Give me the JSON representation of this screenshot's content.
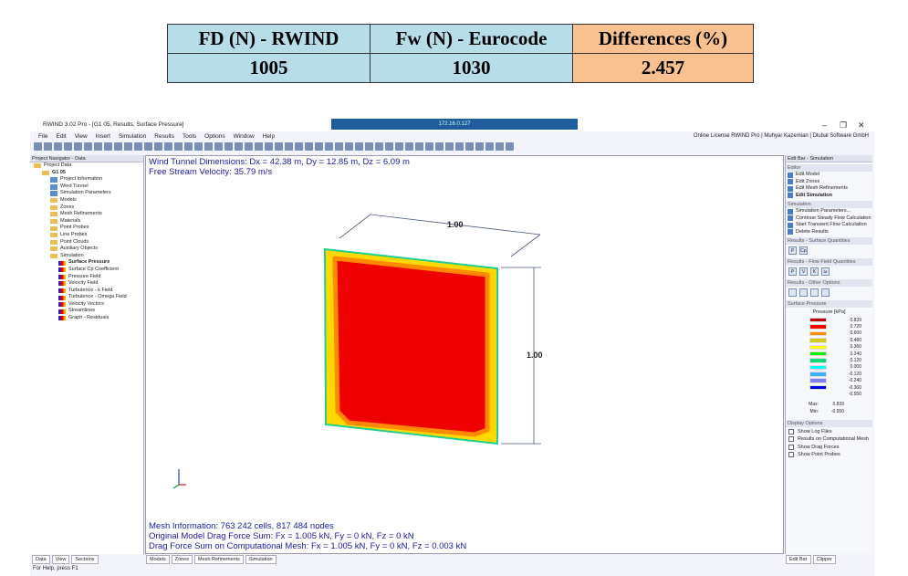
{
  "comparison": {
    "headers": [
      "FD (N) - RWIND",
      "Fw (N) - Eurocode",
      "Differences (%)"
    ],
    "values": [
      "1005",
      "1030",
      "2.457"
    ]
  },
  "window": {
    "title": "RWIND 3.02 Pro - [G1 05, Results, Surface Pressure]",
    "remote": "172.16.0.127",
    "license": "Online License RWIND Pro | Muhyar Kazemian | Dlubal Software GmbH"
  },
  "menu": [
    "File",
    "Edit",
    "View",
    "Insert",
    "Simulation",
    "Results",
    "Tools",
    "Options",
    "Window",
    "Help"
  ],
  "navigator": {
    "title": "Project Navigator - Data",
    "items": [
      {
        "label": "Project Data",
        "icon": "folder",
        "level": 0
      },
      {
        "label": "G1 05",
        "icon": "folder",
        "level": 1,
        "bold": true
      },
      {
        "label": "Project Information",
        "icon": "doc",
        "level": 2
      },
      {
        "label": "Wind Tunnel",
        "icon": "doc",
        "level": 2
      },
      {
        "label": "Simulation Parameters",
        "icon": "doc",
        "level": 2
      },
      {
        "label": "Models",
        "icon": "folder",
        "level": 2
      },
      {
        "label": "Zones",
        "icon": "folder",
        "level": 2
      },
      {
        "label": "Mesh Refinements",
        "icon": "folder",
        "level": 2
      },
      {
        "label": "Materials",
        "icon": "folder",
        "level": 2
      },
      {
        "label": "Point Probes",
        "icon": "folder",
        "level": 2
      },
      {
        "label": "Line Probes",
        "icon": "folder",
        "level": 2
      },
      {
        "label": "Point Clouds",
        "icon": "folder",
        "level": 2
      },
      {
        "label": "Auxiliary Objects",
        "icon": "folder",
        "level": 2
      },
      {
        "label": "Simulation",
        "icon": "folder",
        "level": 2
      },
      {
        "label": "Surface Pressure",
        "icon": "result",
        "level": 3,
        "bold": true
      },
      {
        "label": "Surface Cp Coefficient",
        "icon": "result",
        "level": 3
      },
      {
        "label": "Pressure Field",
        "icon": "result",
        "level": 3
      },
      {
        "label": "Velocity Field",
        "icon": "result",
        "level": 3
      },
      {
        "label": "Turbulence - k Field",
        "icon": "result",
        "level": 3
      },
      {
        "label": "Turbulence - Omega Field",
        "icon": "result",
        "level": 3
      },
      {
        "label": "Velocity Vectors",
        "icon": "result",
        "level": 3
      },
      {
        "label": "Streamlines",
        "icon": "result",
        "level": 3
      },
      {
        "label": "Graph - Residuals",
        "icon": "result",
        "level": 3
      }
    ]
  },
  "viewport": {
    "line1": "Wind Tunnel Dimensions: Dx = 42.38 m, Dy = 12.85 m, Dz = 6.09 m",
    "line2": "Free Stream Velocity: 35.79 m/s",
    "dim_width": "1.00",
    "dim_height": "1.00",
    "mesh_info": "Mesh Information: 763 242 cells, 817 484 nodes",
    "drag1": "Original Model Drag Force Sum: Fx = 1.005 kN, Fy = 0 kN, Fz = 0 kN",
    "drag2": "Drag Force Sum on Computational Mesh: Fx = 1.005 kN, Fy = 0 kN, Fz = 0.003 kN"
  },
  "editbar": {
    "title": "Edit Bar - Simulation",
    "editor": {
      "title": "Editor",
      "items": [
        "Edit Model",
        "Edit Zones",
        "Edit Mesh Refinements",
        "Edit Simulation"
      ]
    },
    "simulation": {
      "title": "Simulation",
      "items": [
        "Simulation Parameters...",
        "Continue Steady Flow Calculation",
        "Start Transient Flow Calculation",
        "Delete Results"
      ]
    },
    "surface_q": {
      "title": "Results - Surface Quantities",
      "buttons": [
        "P",
        "Cp"
      ]
    },
    "flow_q": {
      "title": "Results - Flow Field Quantities",
      "buttons": [
        "P",
        "V",
        "K",
        "ω"
      ]
    },
    "other": {
      "title": "Results - Other Options"
    },
    "legend": {
      "title": "Surface Pressure",
      "unit": "Pressure [kPa]",
      "values": [
        "0.839",
        "0.720",
        "0.600",
        "0.480",
        "0.360",
        "0.240",
        "0.120",
        "0.000",
        "-0.120",
        "-0.240",
        "-0.360",
        "-0.550"
      ],
      "colors": [
        "#c00000",
        "#ff0000",
        "#ff8c00",
        "#d4c800",
        "#ffff00",
        "#00ee00",
        "#00dd77",
        "#00ffff",
        "#3fb0ff",
        "#8080ff",
        "#0000e0"
      ],
      "max_label": "Max:",
      "max": "0.839",
      "min_label": "Min:",
      "min": "-0.550"
    },
    "display": {
      "title": "Display Options",
      "items": [
        "Show Log Files",
        "Results on Computational Mesh",
        "Show Drag Forces",
        "Show Point Probes"
      ]
    }
  },
  "tabs_left": [
    "Data",
    "View",
    "Sections"
  ],
  "tabs_view": [
    "Models",
    "Zones",
    "Mesh Refinements",
    "Simulation"
  ],
  "tabs_right": [
    "Edit Bar",
    "Clipper"
  ],
  "status": "For Help, press F1"
}
